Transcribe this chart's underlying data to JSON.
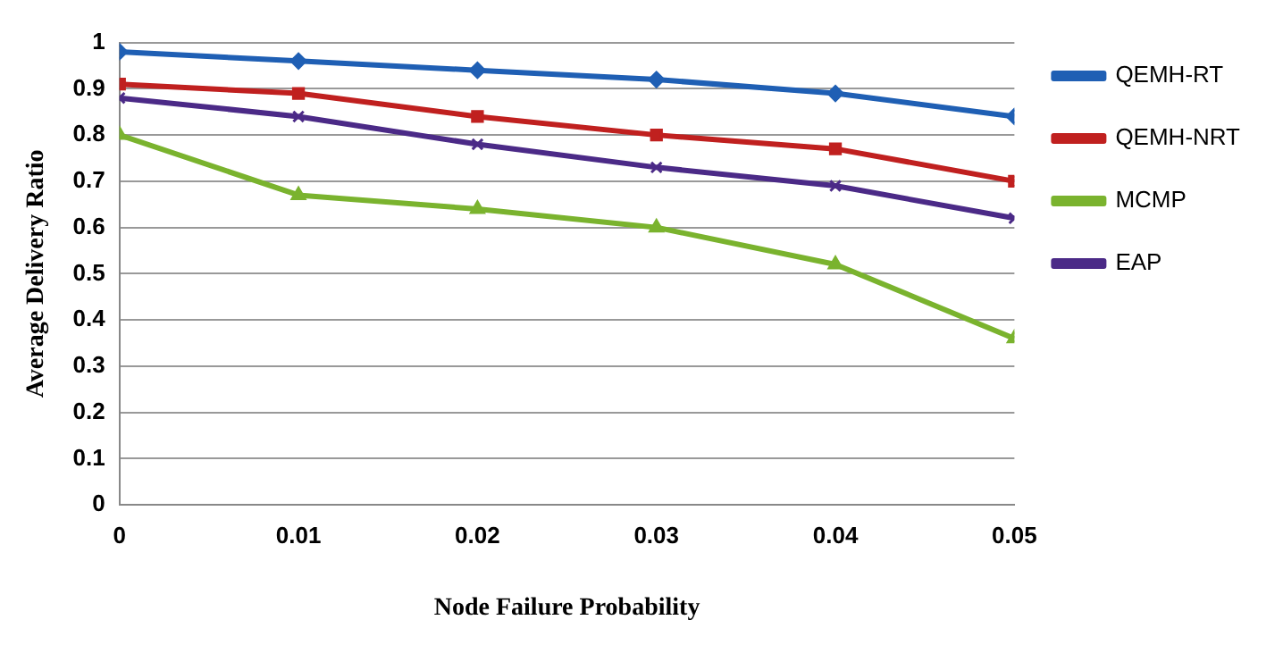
{
  "chart_data": {
    "type": "line",
    "xlabel": "Node Failure Probability",
    "ylabel": "Average Delivery Ratio",
    "x": [
      0,
      0.01,
      0.02,
      0.03,
      0.04,
      0.05
    ],
    "series": [
      {
        "name": "QEMH-RT",
        "color": "#1f5fb4",
        "marker": "diamond",
        "values": [
          0.98,
          0.96,
          0.94,
          0.92,
          0.89,
          0.84
        ]
      },
      {
        "name": "QEMH-NRT",
        "color": "#c0201f",
        "marker": "square",
        "values": [
          0.91,
          0.89,
          0.84,
          0.8,
          0.77,
          0.7
        ]
      },
      {
        "name": "MCMP",
        "color": "#7ab32e",
        "marker": "triangle",
        "values": [
          0.8,
          0.67,
          0.64,
          0.6,
          0.52,
          0.36
        ]
      },
      {
        "name": "EAP",
        "color": "#4b2a87",
        "marker": "cross",
        "values": [
          0.88,
          0.84,
          0.78,
          0.73,
          0.69,
          0.62
        ]
      }
    ],
    "xlim": [
      0,
      0.05
    ],
    "xticks": [
      0,
      0.01,
      0.02,
      0.03,
      0.04,
      0.05
    ],
    "ylim": [
      0,
      1
    ],
    "yticks": [
      0,
      0.1,
      0.2,
      0.3,
      0.4,
      0.5,
      0.6,
      0.7,
      0.8,
      0.9,
      1
    ],
    "grid": "y",
    "legend": "right",
    "line_style": "solid"
  }
}
